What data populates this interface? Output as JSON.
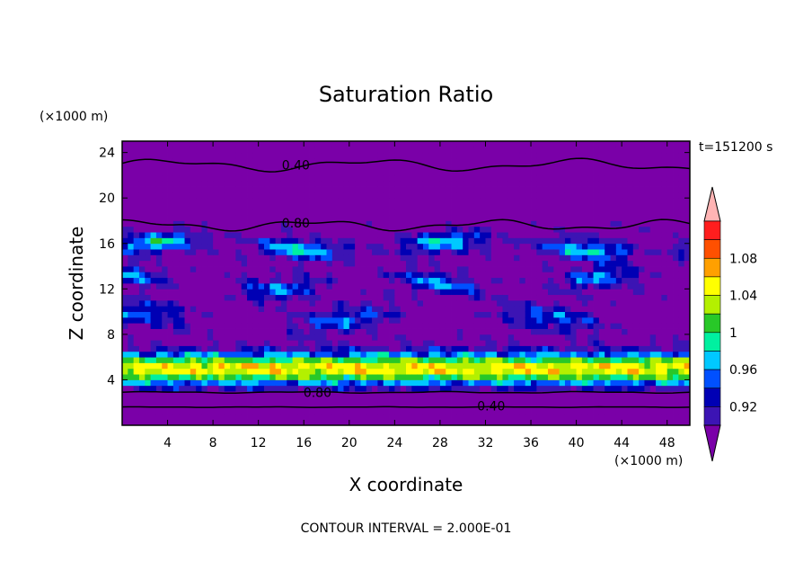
{
  "chart_data": {
    "type": "heatmap",
    "title": "Saturation Ratio",
    "xlabel": "X coordinate",
    "ylabel": "Z coordinate",
    "x_unit": "(×1000 m)",
    "y_unit": "(×1000 m)",
    "time_label": "t=151200 s",
    "footer": "CONTOUR INTERVAL = 2.000E-01",
    "xlim": [
      0,
      50
    ],
    "ylim": [
      0,
      25
    ],
    "x_ticks": [
      "4",
      "8",
      "12",
      "16",
      "20",
      "24",
      "28",
      "32",
      "36",
      "40",
      "44",
      "48"
    ],
    "y_ticks": [
      "4",
      "8",
      "12",
      "16",
      "20",
      "24"
    ],
    "contour_labels": [
      {
        "text": "0.40",
        "x": 15.3,
        "z": 22.9
      },
      {
        "text": "0.80",
        "x": 15.3,
        "z": 17.8
      },
      {
        "text": "0.80",
        "x": 17.2,
        "z": 2.9
      },
      {
        "text": "0.40",
        "x": 32.5,
        "z": 1.7
      }
    ],
    "colorbar": {
      "labels": [
        "1.08",
        "1.04",
        "1",
        "0.96",
        "0.92"
      ],
      "levels": [
        0.92,
        0.94,
        0.96,
        0.98,
        1.0,
        1.02,
        1.04,
        1.06,
        1.08
      ],
      "colors": [
        "#7a00a8",
        "#3c14b4",
        "#0000b4",
        "#0050ff",
        "#00c8ff",
        "#00f0a0",
        "#28c828",
        "#b4f000",
        "#ffff00",
        "#ffa000",
        "#ff5000",
        "#ff1e1e",
        "#ffb4b4"
      ]
    }
  }
}
